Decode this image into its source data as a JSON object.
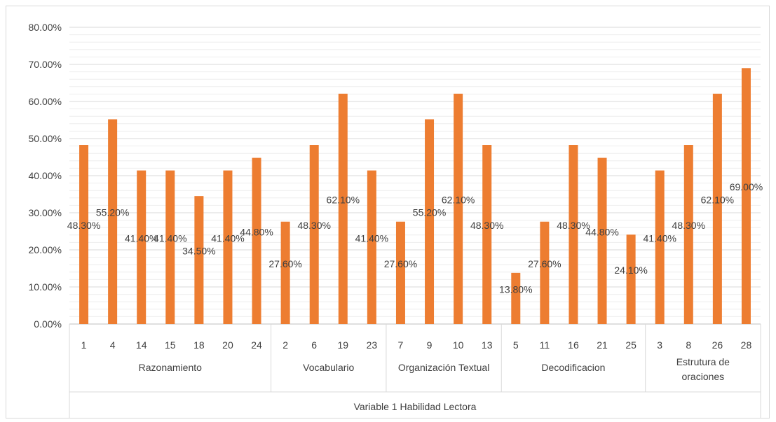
{
  "chart_data": {
    "type": "bar",
    "title": "",
    "xlabel": "Variable 1 Habilidad Lectora",
    "ylabel": "",
    "ylim": [
      0,
      0.8
    ],
    "yticks": [
      "0.00%",
      "10.00%",
      "20.00%",
      "30.00%",
      "40.00%",
      "50.00%",
      "60.00%",
      "70.00%",
      "80.00%"
    ],
    "grid": true,
    "bar_color": "#ED7D31",
    "groups": [
      {
        "name": "Razonamiento",
        "lines": [
          "Razonamiento"
        ],
        "categories": [
          "1",
          "4",
          "14",
          "15",
          "18",
          "20",
          "24"
        ],
        "values": [
          0.483,
          0.552,
          0.414,
          0.414,
          0.345,
          0.414,
          0.448
        ],
        "labels": [
          "48.30%",
          "55.20%",
          "41.40%",
          "41.40%",
          "34.50%",
          "41.40%",
          "44.80%"
        ]
      },
      {
        "name": "Vocabulario",
        "lines": [
          "Vocabulario"
        ],
        "categories": [
          "2",
          "6",
          "19",
          "23"
        ],
        "values": [
          0.276,
          0.483,
          0.621,
          0.414
        ],
        "labels": [
          "27.60%",
          "48.30%",
          "62.10%",
          "41.40%"
        ]
      },
      {
        "name": "Organización Textual",
        "lines": [
          "Organización Textual"
        ],
        "categories": [
          "7",
          "9",
          "10",
          "13"
        ],
        "values": [
          0.276,
          0.552,
          0.621,
          0.483
        ],
        "labels": [
          "27.60%",
          "55.20%",
          "62.10%",
          "48.30%"
        ]
      },
      {
        "name": "Decodificacion",
        "lines": [
          "Decodificacion"
        ],
        "categories": [
          "5",
          "11",
          "16",
          "21",
          "25"
        ],
        "values": [
          0.138,
          0.276,
          0.483,
          0.448,
          0.241
        ],
        "labels": [
          "13.80%",
          "27.60%",
          "48.30%",
          "44.80%",
          "24.10%"
        ]
      },
      {
        "name": "Estrutura de oraciones",
        "lines": [
          "Estrutura de",
          "oraciones"
        ],
        "categories": [
          "3",
          "8",
          "26",
          "28"
        ],
        "values": [
          0.414,
          0.483,
          0.621,
          0.69
        ],
        "labels": [
          "41.40%",
          "48.30%",
          "62.10%",
          "69.00%"
        ]
      }
    ]
  }
}
